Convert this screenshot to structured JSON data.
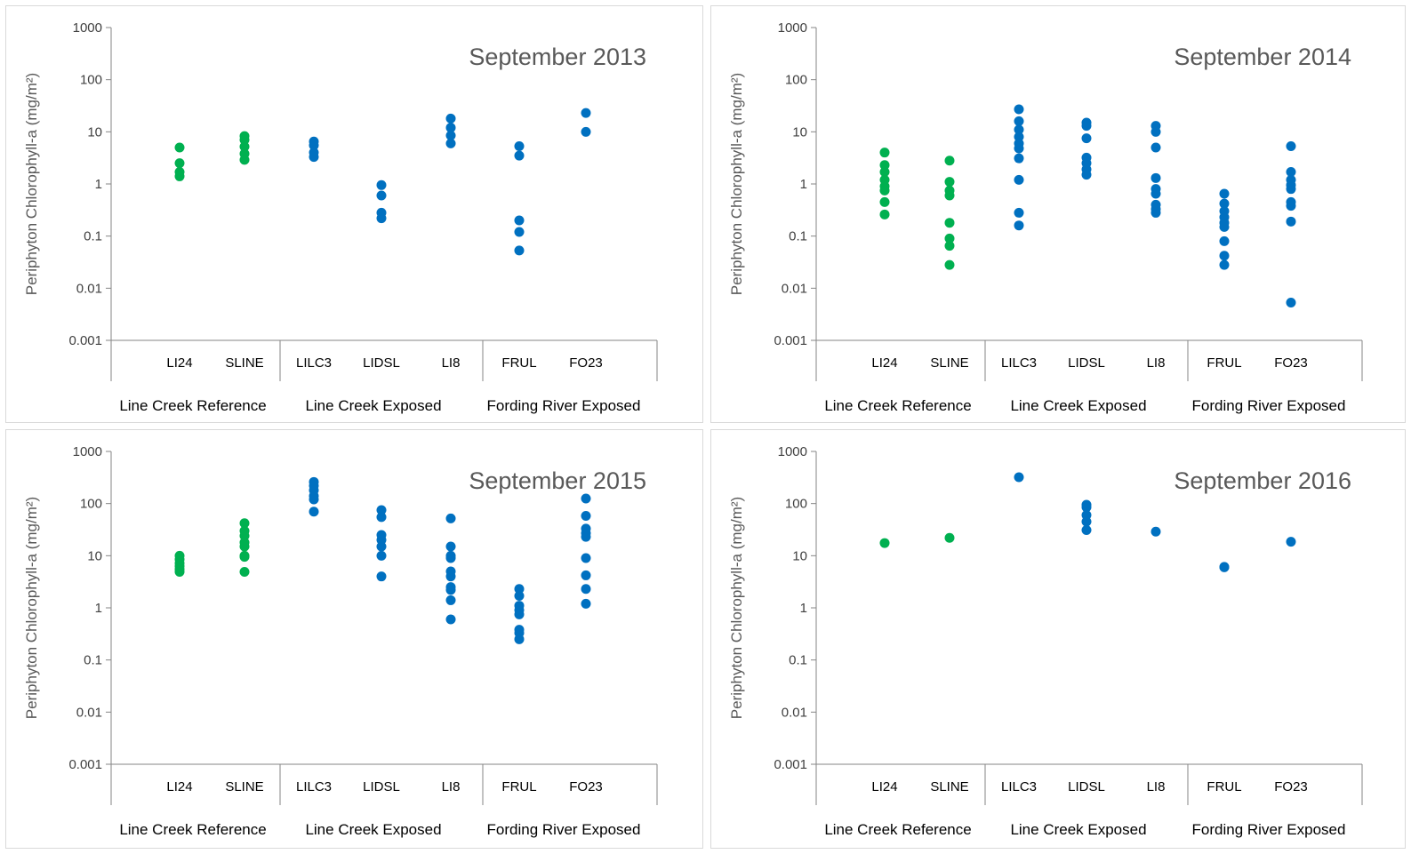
{
  "colors": {
    "reference": "#00b050",
    "exposed": "#0070c0"
  },
  "chart_data": [
    {
      "type": "scatter",
      "title": "September 2013",
      "ylabel": "Periphyton Chlorophyll-a (mg/m²)",
      "yscale": "log",
      "ylim": [
        0.001,
        1000
      ],
      "yticks": [
        "0.001",
        "0.01",
        "0.1",
        "1",
        "10",
        "100",
        "1000"
      ],
      "grid": false,
      "categories": [
        "LI24",
        "SLINE",
        "LILC3",
        "LIDSL",
        "LI8",
        "FRUL",
        "FO23"
      ],
      "groups": [
        {
          "name": "Line Creek Reference",
          "categories": [
            "LI24",
            "SLINE"
          ]
        },
        {
          "name": "Line Creek Exposed",
          "categories": [
            "LILC3",
            "LIDSL",
            "LI8"
          ]
        },
        {
          "name": "Fording River Exposed",
          "categories": [
            "FRUL",
            "FO23"
          ]
        }
      ],
      "series": [
        {
          "name": "Line Creek Reference",
          "color": "#00b050",
          "points": [
            [
              "LI24",
              5.0
            ],
            [
              "LI24",
              2.5
            ],
            [
              "LI24",
              1.7
            ],
            [
              "LI24",
              1.4
            ],
            [
              "SLINE",
              8.3
            ],
            [
              "SLINE",
              7.0
            ],
            [
              "SLINE",
              5.2
            ],
            [
              "SLINE",
              3.8
            ],
            [
              "SLINE",
              2.9
            ]
          ]
        },
        {
          "name": "Exposed",
          "color": "#0070c0",
          "points": [
            [
              "LILC3",
              6.5
            ],
            [
              "LILC3",
              5.5
            ],
            [
              "LILC3",
              4.0
            ],
            [
              "LILC3",
              3.3
            ],
            [
              "LIDSL",
              0.95
            ],
            [
              "LIDSL",
              0.6
            ],
            [
              "LIDSL",
              0.28
            ],
            [
              "LIDSL",
              0.22
            ],
            [
              "LI8",
              18
            ],
            [
              "LI8",
              12
            ],
            [
              "LI8",
              8.5
            ],
            [
              "LI8",
              6.0
            ],
            [
              "FRUL",
              5.3
            ],
            [
              "FRUL",
              3.5
            ],
            [
              "FRUL",
              0.2
            ],
            [
              "FRUL",
              0.12
            ],
            [
              "FRUL",
              0.053
            ],
            [
              "FO23",
              23
            ],
            [
              "FO23",
              10
            ]
          ]
        }
      ]
    },
    {
      "type": "scatter",
      "title": "September 2014",
      "ylabel": "Periphyton Chlorophyll-a (mg/m²)",
      "yscale": "log",
      "ylim": [
        0.001,
        1000
      ],
      "yticks": [
        "0.001",
        "0.01",
        "0.1",
        "1",
        "10",
        "100",
        "1000"
      ],
      "grid": false,
      "categories": [
        "LI24",
        "SLINE",
        "LILC3",
        "LIDSL",
        "LI8",
        "FRUL",
        "FO23"
      ],
      "groups": [
        {
          "name": "Line Creek Reference",
          "categories": [
            "LI24",
            "SLINE"
          ]
        },
        {
          "name": "Line Creek Exposed",
          "categories": [
            "LILC3",
            "LIDSL",
            "LI8"
          ]
        },
        {
          "name": "Fording River Exposed",
          "categories": [
            "FRUL",
            "FO23"
          ]
        }
      ],
      "series": [
        {
          "name": "Line Creek Reference",
          "color": "#00b050",
          "points": [
            [
              "LI24",
              4.0
            ],
            [
              "LI24",
              2.3
            ],
            [
              "LI24",
              1.7
            ],
            [
              "LI24",
              1.2
            ],
            [
              "LI24",
              0.9
            ],
            [
              "LI24",
              0.75
            ],
            [
              "LI24",
              0.45
            ],
            [
              "LI24",
              0.26
            ],
            [
              "SLINE",
              2.8
            ],
            [
              "SLINE",
              1.1
            ],
            [
              "SLINE",
              0.75
            ],
            [
              "SLINE",
              0.6
            ],
            [
              "SLINE",
              0.18
            ],
            [
              "SLINE",
              0.09
            ],
            [
              "SLINE",
              0.065
            ],
            [
              "SLINE",
              0.028
            ]
          ]
        },
        {
          "name": "Exposed",
          "color": "#0070c0",
          "points": [
            [
              "LILC3",
              27
            ],
            [
              "LILC3",
              16
            ],
            [
              "LILC3",
              11
            ],
            [
              "LILC3",
              8
            ],
            [
              "LILC3",
              6
            ],
            [
              "LILC3",
              4.8
            ],
            [
              "LILC3",
              3.1
            ],
            [
              "LILC3",
              1.2
            ],
            [
              "LILC3",
              0.28
            ],
            [
              "LILC3",
              0.16
            ],
            [
              "LIDSL",
              15
            ],
            [
              "LIDSL",
              13
            ],
            [
              "LIDSL",
              7.5
            ],
            [
              "LIDSL",
              3.2
            ],
            [
              "LIDSL",
              2.5
            ],
            [
              "LIDSL",
              1.9
            ],
            [
              "LIDSL",
              1.5
            ],
            [
              "LI8",
              13
            ],
            [
              "LI8",
              10
            ],
            [
              "LI8",
              5.0
            ],
            [
              "LI8",
              1.3
            ],
            [
              "LI8",
              0.8
            ],
            [
              "LI8",
              0.65
            ],
            [
              "LI8",
              0.4
            ],
            [
              "LI8",
              0.33
            ],
            [
              "LI8",
              0.28
            ],
            [
              "FRUL",
              0.65
            ],
            [
              "FRUL",
              0.42
            ],
            [
              "FRUL",
              0.3
            ],
            [
              "FRUL",
              0.23
            ],
            [
              "FRUL",
              0.18
            ],
            [
              "FRUL",
              0.15
            ],
            [
              "FRUL",
              0.08
            ],
            [
              "FRUL",
              0.042
            ],
            [
              "FRUL",
              0.028
            ],
            [
              "FO23",
              5.3
            ],
            [
              "FO23",
              1.7
            ],
            [
              "FO23",
              1.2
            ],
            [
              "FO23",
              0.95
            ],
            [
              "FO23",
              0.8
            ],
            [
              "FO23",
              0.45
            ],
            [
              "FO23",
              0.38
            ],
            [
              "FO23",
              0.19
            ],
            [
              "FO23",
              0.0053
            ]
          ]
        }
      ]
    },
    {
      "type": "scatter",
      "title": "September 2015",
      "ylabel": "Periphyton Chlorophyll-a (mg/m²)",
      "yscale": "log",
      "ylim": [
        0.001,
        1000
      ],
      "yticks": [
        "0.001",
        "0.01",
        "0.1",
        "1",
        "10",
        "100",
        "1000"
      ],
      "grid": false,
      "categories": [
        "LI24",
        "SLINE",
        "LILC3",
        "LIDSL",
        "LI8",
        "FRUL",
        "FO23"
      ],
      "groups": [
        {
          "name": "Line Creek Reference",
          "categories": [
            "LI24",
            "SLINE"
          ]
        },
        {
          "name": "Line Creek Exposed",
          "categories": [
            "LILC3",
            "LIDSL",
            "LI8"
          ]
        },
        {
          "name": "Fording River Exposed",
          "categories": [
            "FRUL",
            "FO23"
          ]
        }
      ],
      "series": [
        {
          "name": "Line Creek Reference",
          "color": "#00b050",
          "points": [
            [
              "LI24",
              10
            ],
            [
              "LI24",
              8.5
            ],
            [
              "LI24",
              7.2
            ],
            [
              "LI24",
              6.3
            ],
            [
              "LI24",
              5.5
            ],
            [
              "LI24",
              4.9
            ],
            [
              "SLINE",
              42
            ],
            [
              "SLINE",
              30
            ],
            [
              "SLINE",
              24
            ],
            [
              "SLINE",
              18
            ],
            [
              "SLINE",
              15
            ],
            [
              "SLINE",
              10
            ],
            [
              "SLINE",
              9.5
            ],
            [
              "SLINE",
              4.9
            ]
          ]
        },
        {
          "name": "Exposed",
          "color": "#0070c0",
          "points": [
            [
              "LILC3",
              260
            ],
            [
              "LILC3",
              220
            ],
            [
              "LILC3",
              180
            ],
            [
              "LILC3",
              140
            ],
            [
              "LILC3",
              120
            ],
            [
              "LILC3",
              70
            ],
            [
              "LIDSL",
              75
            ],
            [
              "LIDSL",
              55
            ],
            [
              "LIDSL",
              25
            ],
            [
              "LIDSL",
              20
            ],
            [
              "LIDSL",
              15
            ],
            [
              "LIDSL",
              10
            ],
            [
              "LIDSL",
              4.0
            ],
            [
              "LI8",
              52
            ],
            [
              "LI8",
              15
            ],
            [
              "LI8",
              10
            ],
            [
              "LI8",
              9
            ],
            [
              "LI8",
              5
            ],
            [
              "LI8",
              4
            ],
            [
              "LI8",
              2.5
            ],
            [
              "LI8",
              2.2
            ],
            [
              "LI8",
              1.4
            ],
            [
              "LI8",
              0.6
            ],
            [
              "FRUL",
              2.3
            ],
            [
              "FRUL",
              1.7
            ],
            [
              "FRUL",
              1.1
            ],
            [
              "FRUL",
              0.9
            ],
            [
              "FRUL",
              0.75
            ],
            [
              "FRUL",
              0.38
            ],
            [
              "FRUL",
              0.33
            ],
            [
              "FRUL",
              0.25
            ],
            [
              "FO23",
              125
            ],
            [
              "FO23",
              58
            ],
            [
              "FO23",
              33
            ],
            [
              "FO23",
              27
            ],
            [
              "FO23",
              23
            ],
            [
              "FO23",
              9
            ],
            [
              "FO23",
              4.2
            ],
            [
              "FO23",
              2.3
            ],
            [
              "FO23",
              1.2
            ]
          ]
        }
      ]
    },
    {
      "type": "scatter",
      "title": "September 2016",
      "ylabel": "Periphyton Chlorophyll-a (mg/m²)",
      "yscale": "log",
      "ylim": [
        0.001,
        1000
      ],
      "yticks": [
        "0.001",
        "0.01",
        "0.1",
        "1",
        "10",
        "100",
        "1000"
      ],
      "grid": false,
      "categories": [
        "LI24",
        "SLINE",
        "LILC3",
        "LIDSL",
        "LI8",
        "FRUL",
        "FO23"
      ],
      "groups": [
        {
          "name": "Line Creek Reference",
          "categories": [
            "LI24",
            "SLINE"
          ]
        },
        {
          "name": "Line Creek Exposed",
          "categories": [
            "LILC3",
            "LIDSL",
            "LI8"
          ]
        },
        {
          "name": "Fording River Exposed",
          "categories": [
            "FRUL",
            "FO23"
          ]
        }
      ],
      "series": [
        {
          "name": "Line Creek Reference",
          "color": "#00b050",
          "points": [
            [
              "LI24",
              17.5
            ],
            [
              "SLINE",
              22
            ]
          ]
        },
        {
          "name": "Exposed",
          "color": "#0070c0",
          "points": [
            [
              "LILC3",
              320
            ],
            [
              "LIDSL",
              95
            ],
            [
              "LIDSL",
              85
            ],
            [
              "LIDSL",
              60
            ],
            [
              "LIDSL",
              45
            ],
            [
              "LIDSL",
              31
            ],
            [
              "LI8",
              29
            ],
            [
              "FRUL",
              6.1
            ],
            [
              "FRUL",
              6.0
            ],
            [
              "FO23",
              18.5
            ]
          ]
        }
      ]
    }
  ]
}
